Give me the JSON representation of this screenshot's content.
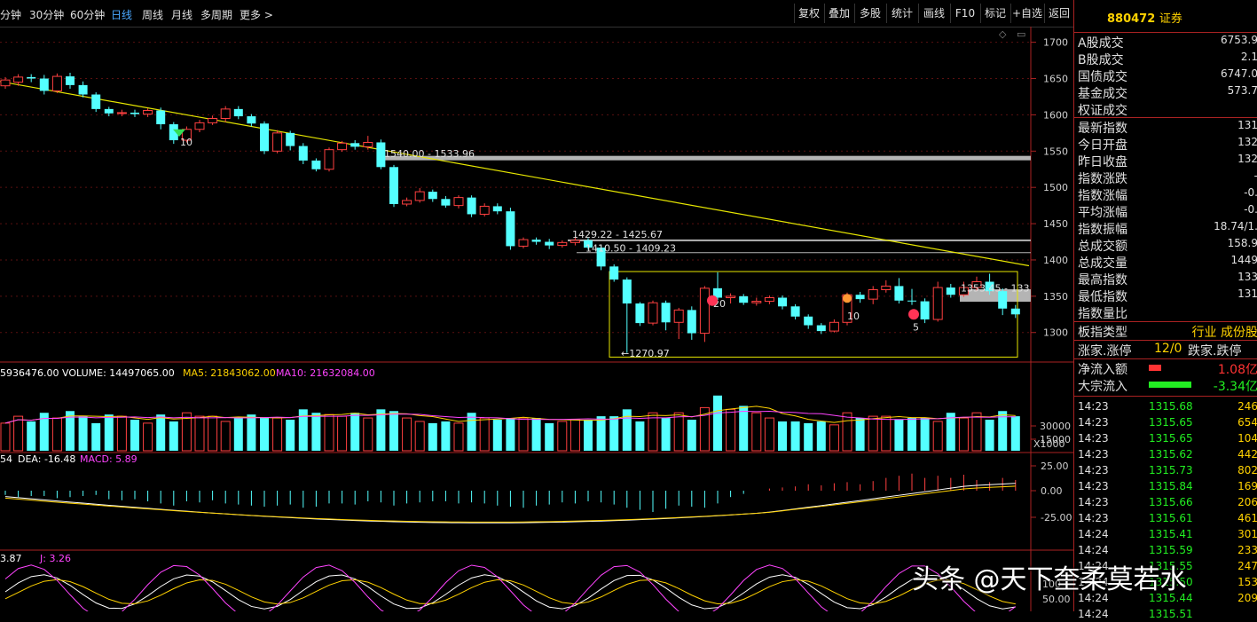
{
  "topbar": {
    "periods": [
      "分钟",
      "30分钟",
      "60分钟",
      "日线",
      "周线",
      "月线",
      "多周期",
      "更多 >"
    ],
    "active_period": "日线",
    "buttons": [
      "复权",
      "叠加",
      "多股",
      "统计",
      "画线",
      "F10",
      "标记",
      "+自选",
      "返回"
    ]
  },
  "main_chart": {
    "y_ticks": [
      "1700",
      "1650",
      "1600",
      "1550",
      "1500",
      "1450",
      "1400",
      "1350",
      "1300"
    ],
    "y_range": [
      1263,
      1713
    ],
    "annotations": {
      "level1": "1540.00 - 1533.96",
      "level2": "1429.22 - 1425.67",
      "level3": "1410.50 - 1409.23",
      "level4": "1353.45 - 133",
      "low_label": "1270.97",
      "marker_a": "20",
      "marker_b": "10",
      "marker_c": "5",
      "marker_d": "10"
    },
    "candles": [
      [
        1640,
        1648,
        1636,
        1652
      ],
      [
        1645,
        1652,
        1640,
        1656
      ],
      [
        1652,
        1650,
        1645,
        1656
      ],
      [
        1650,
        1633,
        1628,
        1655
      ],
      [
        1633,
        1653,
        1630,
        1657
      ],
      [
        1653,
        1641,
        1636,
        1658
      ],
      [
        1641,
        1628,
        1624,
        1646
      ],
      [
        1628,
        1608,
        1604,
        1631
      ],
      [
        1608,
        1602,
        1598,
        1611
      ],
      [
        1602,
        1603,
        1598,
        1607
      ],
      [
        1603,
        1601,
        1597,
        1607
      ],
      [
        1601,
        1606,
        1597,
        1609
      ],
      [
        1606,
        1587,
        1580,
        1610
      ],
      [
        1587,
        1565,
        1560,
        1590
      ],
      [
        1565,
        1580,
        1562,
        1584
      ],
      [
        1580,
        1589,
        1576,
        1593
      ],
      [
        1589,
        1595,
        1586,
        1599
      ],
      [
        1595,
        1608,
        1590,
        1612
      ],
      [
        1608,
        1598,
        1594,
        1612
      ],
      [
        1598,
        1588,
        1584,
        1601
      ],
      [
        1588,
        1550,
        1546,
        1591
      ],
      [
        1550,
        1575,
        1547,
        1579
      ],
      [
        1575,
        1557,
        1551,
        1578
      ],
      [
        1557,
        1537,
        1532,
        1561
      ],
      [
        1537,
        1525,
        1522,
        1540
      ],
      [
        1525,
        1552,
        1522,
        1555
      ],
      [
        1552,
        1561,
        1549,
        1564
      ],
      [
        1561,
        1556,
        1552,
        1565
      ],
      [
        1556,
        1562,
        1552,
        1571
      ],
      [
        1562,
        1528,
        1525,
        1566
      ],
      [
        1528,
        1477,
        1473,
        1531
      ],
      [
        1477,
        1482,
        1474,
        1486
      ],
      [
        1482,
        1494,
        1479,
        1499
      ],
      [
        1494,
        1484,
        1480,
        1497
      ],
      [
        1484,
        1475,
        1472,
        1488
      ],
      [
        1475,
        1486,
        1471,
        1489
      ],
      [
        1486,
        1463,
        1459,
        1489
      ],
      [
        1463,
        1474,
        1460,
        1478
      ],
      [
        1474,
        1467,
        1463,
        1478
      ],
      [
        1467,
        1419,
        1414,
        1472
      ],
      [
        1419,
        1428,
        1416,
        1431
      ],
      [
        1428,
        1425,
        1421,
        1431
      ],
      [
        1425,
        1420,
        1415,
        1429
      ],
      [
        1420,
        1424,
        1417,
        1427
      ],
      [
        1424,
        1427,
        1420,
        1431
      ],
      [
        1427,
        1417,
        1414,
        1430
      ],
      [
        1417,
        1391,
        1386,
        1420
      ],
      [
        1391,
        1373,
        1370,
        1394
      ],
      [
        1373,
        1340,
        1272,
        1376
      ],
      [
        1340,
        1313,
        1309,
        1342
      ],
      [
        1313,
        1341,
        1310,
        1344
      ],
      [
        1341,
        1314,
        1303,
        1344
      ],
      [
        1314,
        1331,
        1291,
        1334
      ],
      [
        1331,
        1299,
        1290,
        1336
      ],
      [
        1299,
        1361,
        1287,
        1364
      ],
      [
        1361,
        1348,
        1345,
        1383
      ],
      [
        1348,
        1350,
        1340,
        1354
      ],
      [
        1350,
        1341,
        1338,
        1353
      ],
      [
        1341,
        1343,
        1337,
        1348
      ],
      [
        1343,
        1348,
        1339,
        1351
      ],
      [
        1348,
        1336,
        1332,
        1351
      ],
      [
        1336,
        1322,
        1318,
        1339
      ],
      [
        1322,
        1310,
        1305,
        1325
      ],
      [
        1310,
        1302,
        1298,
        1313
      ],
      [
        1302,
        1314,
        1300,
        1318
      ],
      [
        1314,
        1352,
        1310,
        1355
      ],
      [
        1352,
        1346,
        1341,
        1356
      ],
      [
        1346,
        1359,
        1339,
        1364
      ],
      [
        1359,
        1364,
        1355,
        1372
      ],
      [
        1364,
        1344,
        1340,
        1375
      ],
      [
        1344,
        1343,
        1338,
        1360
      ],
      [
        1343,
        1318,
        1313,
        1347
      ],
      [
        1318,
        1362,
        1315,
        1370
      ],
      [
        1362,
        1352,
        1348,
        1367
      ],
      [
        1352,
        1362,
        1349,
        1370
      ],
      [
        1362,
        1370,
        1358,
        1377
      ],
      [
        1370,
        1357,
        1352,
        1381
      ],
      [
        1357,
        1333,
        1324,
        1361
      ],
      [
        1333,
        1325,
        1320,
        1338
      ]
    ]
  },
  "volume": {
    "header": "5936476.00  VOLUME: 14497065.00  MA5: 21843062.00  MA10: 21632084.00",
    "header_parts": [
      "5936476.00",
      "VOLUME: 14497065.00",
      "MA5: 21843062.00",
      "MA10: 21632084.00"
    ],
    "y_ticks": [
      "30000",
      "15000"
    ],
    "unit": "X1000",
    "values": [
      16,
      20,
      17,
      22,
      19,
      23,
      20,
      16,
      21,
      20,
      18,
      16,
      21,
      17,
      22,
      20,
      20,
      17,
      19,
      21,
      19,
      19,
      18,
      24,
      22,
      21,
      20,
      22,
      19,
      24,
      23,
      19,
      17,
      16,
      17,
      16,
      22,
      19,
      18,
      19,
      19,
      19,
      16,
      17,
      18,
      18,
      20,
      20,
      24,
      17,
      22,
      19,
      22,
      18,
      25,
      32,
      24,
      26,
      22,
      19,
      17,
      17,
      16,
      17,
      15,
      22,
      19,
      20,
      20,
      18,
      19,
      19,
      17,
      22,
      19,
      22,
      18,
      23,
      20
    ]
  },
  "macd": {
    "header_parts": [
      "54",
      "DEA: -16.48",
      "MACD: 5.89"
    ],
    "y_ticks": [
      "25.00",
      "0.00",
      "-25.00"
    ],
    "values": [
      -4,
      -6,
      -5,
      -5,
      -7,
      -6,
      -5,
      -4,
      -8,
      -9,
      -8,
      -10,
      -12,
      -14,
      -10,
      -11,
      -9,
      -12,
      -13,
      -14,
      -15,
      -14,
      -13,
      -16,
      -15,
      -12,
      -12,
      -13,
      -10,
      -11,
      -14,
      -12,
      -11,
      -10,
      -10,
      -12,
      -11,
      -12,
      -14,
      -15,
      -16,
      -14,
      -13,
      -11,
      -12,
      -10,
      -11,
      -13,
      -16,
      -18,
      -20,
      -17,
      -14,
      -15,
      -16,
      -12,
      -6,
      -3,
      0,
      2,
      3,
      4,
      6,
      5,
      7,
      8,
      6,
      9,
      12,
      14,
      16,
      12,
      14,
      12,
      15,
      10,
      8,
      12,
      10
    ]
  },
  "kdj": {
    "header_parts": [
      "3.87",
      "J: 3.26"
    ],
    "y_ticks": [
      "100",
      "50.00"
    ]
  },
  "side_panel": {
    "code": "880472",
    "name": "证券",
    "stats": [
      {
        "label": "A股成交",
        "value": "6753.9"
      },
      {
        "label": "B股成交",
        "value": "2.1"
      },
      {
        "label": "国债成交",
        "value": "6747.0"
      },
      {
        "label": "基金成交",
        "value": "573.7"
      },
      {
        "label": "权证成交",
        "value": ""
      },
      {
        "label": "最新指数",
        "value": "131"
      },
      {
        "label": "今日开盘",
        "value": "132"
      },
      {
        "label": "昨日收盘",
        "value": "132"
      },
      {
        "label": "指数涨跌",
        "value": "-"
      },
      {
        "label": "指数涨幅",
        "value": "-0."
      },
      {
        "label": "平均涨幅",
        "value": "-0."
      },
      {
        "label": "指数振幅",
        "value": "18.74/1."
      },
      {
        "label": "总成交额",
        "value": "158.9"
      },
      {
        "label": "总成交量",
        "value": "1449"
      },
      {
        "label": "最高指数",
        "value": "133"
      },
      {
        "label": "最低指数",
        "value": "131"
      },
      {
        "label": "指数量比",
        "value": ""
      }
    ],
    "board_type_label": "板指类型",
    "board_type_value": "行业 成份股",
    "breadth": {
      "up_label": "涨家.涨停",
      "up_value": "12/0",
      "down_label": "跌家.跌停"
    },
    "flows": [
      {
        "label": "净流入额",
        "value": "1.08亿",
        "color": "#ff3333"
      },
      {
        "label": "大宗流入",
        "value": "-3.34亿",
        "color": "#22ee22"
      }
    ],
    "ticks": [
      {
        "time": "14:23",
        "price": "1315.68",
        "vol": "246"
      },
      {
        "time": "14:23",
        "price": "1315.65",
        "vol": "654"
      },
      {
        "time": "14:23",
        "price": "1315.65",
        "vol": "104"
      },
      {
        "time": "14:23",
        "price": "1315.62",
        "vol": "442"
      },
      {
        "time": "14:23",
        "price": "1315.73",
        "vol": "802"
      },
      {
        "time": "14:23",
        "price": "1315.84",
        "vol": "169"
      },
      {
        "time": "14:23",
        "price": "1315.66",
        "vol": "206"
      },
      {
        "time": "14:23",
        "price": "1315.61",
        "vol": "461"
      },
      {
        "time": "14:24",
        "price": "1315.41",
        "vol": "301"
      },
      {
        "time": "14:24",
        "price": "1315.59",
        "vol": "233"
      },
      {
        "time": "14:24",
        "price": "1315.55",
        "vol": "247"
      },
      {
        "time": "14:24",
        "price": "1315.50",
        "vol": "153"
      },
      {
        "time": "14:24",
        "price": "1315.44",
        "vol": "209"
      },
      {
        "time": "14:24",
        "price": "1315.51",
        "vol": ""
      }
    ]
  },
  "watermark": "头条 @天下奎柔莫若水"
}
